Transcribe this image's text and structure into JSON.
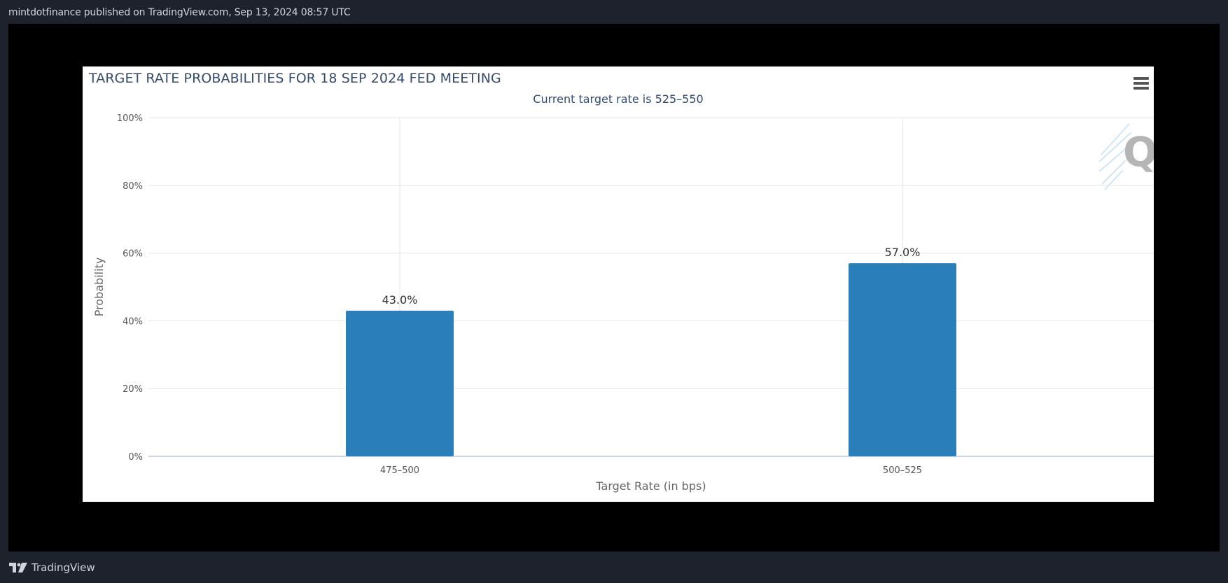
{
  "header": {
    "published_text": "mintdotfinance published on TradingView.com, Sep 13, 2024 08:57 UTC"
  },
  "footer": {
    "brand": "TradingView",
    "logo_icon": "tradingview-logo-icon"
  },
  "chart_menu_icon": "hamburger-menu-icon",
  "colors": {
    "page_bg": "#1e222d",
    "frame_bg": "#000000",
    "bar": "#2a7fba",
    "title": "#344a6e"
  },
  "chart_data": {
    "type": "bar",
    "title": "TARGET RATE PROBABILITIES FOR 18 SEP 2024 FED MEETING",
    "subtitle": "Current target rate is 525–550",
    "xlabel": "Target Rate (in bps)",
    "ylabel": "Probability",
    "categories": [
      "475–500",
      "500–525"
    ],
    "values": [
      43.0,
      57.0
    ],
    "data_labels": [
      "43.0%",
      "57.0%"
    ],
    "ylim": [
      0,
      100
    ],
    "yticks": [
      0,
      20,
      40,
      60,
      80,
      100
    ],
    "ytick_labels": [
      "0%",
      "20%",
      "40%",
      "60%",
      "80%",
      "100%"
    ],
    "grid": true,
    "legend": "none"
  }
}
